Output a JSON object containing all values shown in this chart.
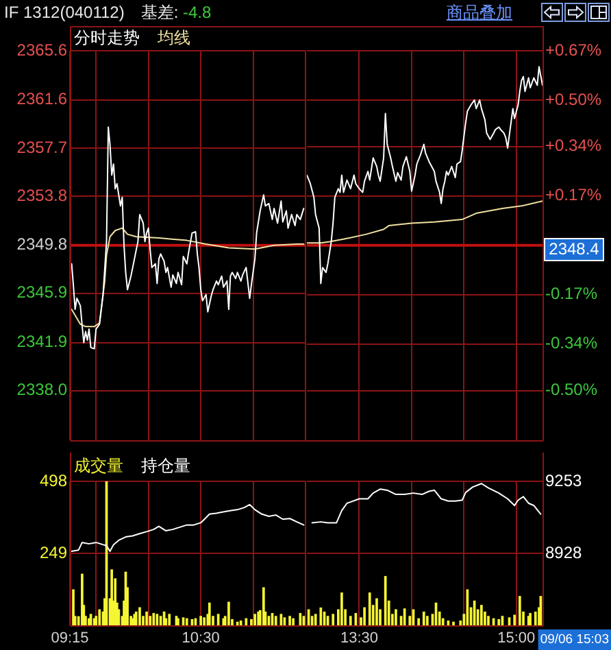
{
  "chart_data": [
    {
      "type": "line",
      "title": "IF 1312(040112)",
      "annotations": [
        "基差: -4.8"
      ],
      "series": [
        {
          "name": "分时走势",
          "color": "#ffffff",
          "x": [
            9.267,
            9.283,
            9.3,
            9.317,
            9.35,
            9.367,
            9.383,
            9.4,
            9.417,
            9.433,
            9.45,
            9.483,
            9.5,
            9.517,
            9.533,
            9.567,
            9.6,
            9.617,
            9.633,
            9.65,
            9.667,
            9.683,
            9.7,
            9.733,
            9.75,
            9.767,
            9.783,
            9.8,
            9.833,
            9.85,
            9.883,
            9.9,
            9.917,
            9.95,
            9.967,
            9.983,
            10,
            10.017,
            10.033,
            10.067,
            10.083,
            10.1,
            10.117,
            10.15,
            10.167,
            10.183,
            10.217,
            10.233,
            10.267,
            10.283,
            10.317,
            10.333,
            10.367,
            10.383,
            10.417,
            10.45,
            10.467,
            10.483,
            10.5,
            10.517,
            10.55,
            10.567,
            10.6,
            10.617,
            10.65,
            10.667,
            10.7,
            10.717,
            10.75,
            10.767,
            10.783,
            10.8,
            10.833,
            10.85,
            10.883,
            10.9,
            10.933,
            10.967,
            10.983,
            11.017,
            11.033,
            11.067,
            11.1,
            11.117,
            11.15,
            11.183,
            11.2,
            11.233,
            11.267,
            11.283,
            11.317,
            11.333,
            11.367,
            11.4,
            11.417,
            11.45,
            11.483
          ],
          "values": [
            2348.3,
            2346.6,
            2344.6,
            2345.5,
            2344.9,
            2343.3,
            2341.9,
            2342.8,
            2342.1,
            2343.0,
            2341.5,
            2341.4,
            2343.0,
            2343.2,
            2343.4,
            2345.8,
            2350.1,
            2359.4,
            2358.0,
            2355.5,
            2356.4,
            2354.4,
            2354.8,
            2353.0,
            2353.7,
            2349.8,
            2347.6,
            2346.2,
            2347.3,
            2348.0,
            2349.4,
            2350.1,
            2352.3,
            2351.6,
            2350.1,
            2350.8,
            2351.2,
            2349.4,
            2348.0,
            2348.3,
            2346.7,
            2348.7,
            2349.1,
            2348.5,
            2347.6,
            2348.0,
            2346.4,
            2347.4,
            2346.7,
            2347.6,
            2346.6,
            2348.9,
            2348.3,
            2349.2,
            2350.8,
            2350.9,
            2349.1,
            2348.0,
            2346.2,
            2345.3,
            2345.8,
            2344.4,
            2345.7,
            2346.2,
            2346.9,
            2346.6,
            2347.3,
            2346.4,
            2346.9,
            2344.6,
            2347.3,
            2347.6,
            2347.1,
            2347.6,
            2346.9,
            2347.4,
            2348.0,
            2345.5,
            2346.6,
            2348.7,
            2350.8,
            2352.6,
            2353.9,
            2353.0,
            2353.2,
            2351.9,
            2352.8,
            2351.6,
            2353.4,
            2351.7,
            2352.6,
            2351.2,
            2352.3,
            2351.4,
            2352.3,
            2351.9,
            2352.8
          ]
        },
        {
          "name": "均线",
          "color": "#f0e0a0",
          "x": [
            9.267,
            9.35,
            9.4,
            9.483,
            9.533,
            9.583,
            9.6,
            9.633,
            9.683,
            9.75,
            9.8,
            9.883,
            10.1,
            10.367,
            10.55,
            10.767,
            11.017,
            11.2,
            11.417,
            11.483
          ],
          "values": [
            2344.6,
            2343.4,
            2343.2,
            2343.2,
            2343.5,
            2346.9,
            2349.0,
            2350.5,
            2351.0,
            2351.2,
            2350.7,
            2350.5,
            2350.4,
            2350.2,
            2349.9,
            2349.6,
            2349.5,
            2349.8,
            2349.9,
            2349.9
          ]
        }
      ],
      "xlim": [
        9.25,
        11.5
      ],
      "xticks": [
        {
          "value": 9.25,
          "label": null
        },
        {
          "value": 9.5,
          "label": null
        },
        {
          "value": 10,
          "label": null
        },
        {
          "value": 10.5,
          "label": null
        },
        {
          "value": 11,
          "label": null
        },
        {
          "value": 11.5,
          "label": null
        }
      ],
      "ylim": [
        2334.0,
        2365.6
      ],
      "yticks": [
        2365.6,
        2361.6,
        2357.7,
        2353.8,
        2349.8,
        2345.9,
        2341.9,
        {
          "value": 2338.0,
          "label": "2338.0"
        }
      ],
      "ref_lines": [
        {
          "axis": "y",
          "value": 2349.8,
          "color": "#c01010"
        }
      ],
      "grid": true,
      "legend": "top left",
      "tick_labels": "y",
      "marker": "none",
      "line_style": "solid"
    },
    {
      "type": "line",
      "annotations": [
        "商品叠加",
        "2348.4"
      ],
      "series": [
        {
          "color": "#ffffff",
          "x": [
            13,
            13.033,
            13.067,
            13.083,
            13.117,
            13.133,
            13.15,
            13.183,
            13.2,
            13.233,
            13.25,
            13.267,
            13.3,
            13.317,
            13.333,
            13.35,
            13.383,
            13.417,
            13.45,
            13.467,
            13.5,
            13.533,
            13.55,
            13.583,
            13.6,
            13.633,
            13.667,
            13.683,
            13.7,
            13.733,
            13.75,
            13.767,
            13.8,
            13.817,
            13.85,
            13.867,
            13.9,
            13.917,
            13.95,
            13.983,
            14,
            14.033,
            14.05,
            14.083,
            14.117,
            14.133,
            14.167,
            14.217,
            14.233,
            14.267,
            14.283,
            14.3,
            14.317,
            14.333,
            14.35,
            14.383,
            14.417,
            14.433,
            14.467,
            14.483,
            14.517,
            14.533,
            14.567,
            14.6,
            14.617,
            14.65,
            14.667,
            14.7,
            14.717,
            14.75,
            14.783,
            14.8,
            14.833,
            14.85,
            14.883,
            14.9,
            14.917,
            14.95,
            14.967,
            14.983,
            15.017,
            15.033,
            15.05,
            15.067,
            15.083,
            15.117,
            15.133,
            15.167,
            15.2,
            15.217,
            15.25
          ],
          "values": [
            2355.5,
            2354.8,
            2353.7,
            2352.3,
            2351.2,
            2346.7,
            2348.0,
            2347.6,
            2348.3,
            2350.1,
            2351.6,
            2353.7,
            2354.4,
            2354.1,
            2355.5,
            2354.1,
            2355.1,
            2354.4,
            2355.5,
            2354.8,
            2354.4,
            2354.1,
            2355.0,
            2355.8,
            2355.1,
            2356.9,
            2356.2,
            2355.5,
            2355.0,
            2356.9,
            2360.5,
            2358.0,
            2356.9,
            2356.2,
            2355.0,
            2355.7,
            2355.1,
            2356.2,
            2357.0,
            2355.8,
            2354.2,
            2355.5,
            2356.4,
            2357.1,
            2358.0,
            2357.3,
            2356.6,
            2355.8,
            2355.0,
            2354.1,
            2353.2,
            2354.4,
            2355.0,
            2355.8,
            2355.5,
            2356.2,
            2355.3,
            2356.4,
            2356.6,
            2357.5,
            2359.8,
            2360.7,
            2361.2,
            2361.6,
            2360.9,
            2361.6,
            2360.9,
            2360.0,
            2358.9,
            2358.4,
            2358.9,
            2359.2,
            2359.4,
            2359.2,
            2358.9,
            2358.5,
            2357.7,
            2359.8,
            2360.9,
            2360.1,
            2361.2,
            2362.3,
            2363.2,
            2363.5,
            2362.3,
            2363.4,
            2362.6,
            2363.4,
            2362.8,
            2364.3,
            2362.8
          ]
        },
        {
          "color": "#f0e0a0",
          "x": [
            13,
            13.133,
            13.217,
            13.35,
            13.567,
            13.733,
            13.783,
            14,
            14.217,
            14.483,
            14.617,
            14.867,
            15.05,
            15.25
          ],
          "values": [
            2350.0,
            2350.0,
            2350.1,
            2350.3,
            2350.7,
            2351.1,
            2351.4,
            2351.6,
            2351.7,
            2351.9,
            2352.4,
            2352.8,
            2353.0,
            2353.4
          ]
        }
      ],
      "xlim": [
        13.0,
        15.25
      ],
      "xticks": [
        {
          "value": 13.5,
          "label": null
        },
        {
          "value": 14,
          "label": null
        },
        {
          "value": 14.5,
          "label": null
        },
        {
          "value": 15,
          "label": null
        }
      ],
      "ylim": [
        2334.0,
        2365.6
      ],
      "y2lim": [
        -0.67,
        0.67
      ],
      "y2ticks": [
        {
          "value": 0.67,
          "label": "+0.67%"
        },
        {
          "value": 0.5,
          "label": "+0.50%"
        },
        {
          "value": 0.34,
          "label": "+0.34%"
        },
        {
          "value": 0.17,
          "label": "+0.17%"
        },
        {
          "value": -0.17,
          "label": "-0.17%"
        },
        {
          "value": -0.34,
          "label": "-0.34%"
        },
        {
          "value": -0.5,
          "label": "-0.50%"
        }
      ],
      "ref_lines": [
        {
          "axis": "y",
          "value": 2349.8,
          "color": "#c01010"
        }
      ],
      "grid": true,
      "tick_labels": "y",
      "marker": "none",
      "line_style": "solid"
    },
    {
      "type": "bar",
      "series": [
        {
          "name": "成交量",
          "color": "#f5f532",
          "x": [
            9.283,
            9.3,
            9.333,
            9.367,
            9.383,
            9.4,
            9.433,
            9.45,
            9.483,
            9.5,
            9.533,
            9.567,
            9.583,
            9.6,
            9.633,
            9.65,
            9.667,
            9.683,
            9.7,
            9.717,
            9.75,
            9.767,
            9.783,
            9.8,
            9.833,
            9.85,
            9.867,
            9.883,
            9.917,
            9.95,
            9.983,
            10.017,
            10.05,
            10.083,
            10.117,
            10.15,
            10.167,
            10.2,
            10.267,
            10.283,
            10.333,
            10.367,
            10.417,
            10.45,
            10.5,
            10.533,
            10.567,
            10.583,
            10.617,
            10.667,
            10.717,
            10.733,
            10.767,
            10.8,
            10.85,
            10.883,
            10.933,
            10.983,
            11.017,
            11.05,
            11.067,
            11.1,
            11.117,
            11.15,
            11.183,
            11.217,
            11.267,
            11.3,
            11.35,
            11.383,
            11.45,
            11.483
          ],
          "values": [
            123,
            31,
            30,
            177,
            69,
            31,
            23,
            38,
            23,
            31,
            54,
            46,
            92,
            498,
            92,
            192,
            84,
            161,
            77,
            54,
            31,
            84,
            184,
            130,
            31,
            23,
            38,
            46,
            61,
            31,
            46,
            31,
            41,
            38,
            31,
            46,
            23,
            38,
            31,
            23,
            26,
            23,
            20,
            23,
            31,
            26,
            38,
            77,
            31,
            38,
            23,
            31,
            80,
            20,
            11,
            15,
            23,
            20,
            38,
            46,
            51,
            130,
            46,
            31,
            41,
            31,
            38,
            26,
            31,
            23,
            41,
            31
          ]
        },
        {
          "name": "持仓量",
          "type": "line",
          "axis": "y2",
          "color": "#ffffff",
          "x": [
            9.267,
            9.333,
            9.367,
            9.433,
            9.5,
            9.567,
            9.6,
            9.633,
            9.667,
            9.717,
            9.783,
            9.85,
            9.917,
            9.983,
            10.05,
            10.1,
            10.167,
            10.233,
            10.3,
            10.367,
            10.433,
            10.5,
            10.55,
            10.583,
            10.65,
            10.717,
            10.783,
            10.85,
            10.917,
            10.967,
            11.017,
            11.083,
            11.15,
            11.217,
            11.283,
            11.35,
            11.417,
            11.483
          ],
          "values": [
            8937,
            8943,
            8977,
            8971,
            8977,
            8967,
            8963,
            8937,
            8967,
            8987,
            9002,
            9007,
            9017,
            9026,
            9036,
            9050,
            9030,
            9036,
            9046,
            9056,
            9056,
            9066,
            9089,
            9105,
            9109,
            9115,
            9121,
            9125,
            9135,
            9148,
            9125,
            9105,
            9095,
            9101,
            9082,
            9085,
            9070,
            9056
          ]
        }
      ],
      "xlim": [
        9.25,
        11.5
      ],
      "xticks": [
        {
          "value": 9.25,
          "label": "09:15"
        },
        {
          "value": 9.5,
          "label": null
        },
        {
          "value": 10,
          "label": null
        },
        {
          "value": 10.5,
          "label": "10:30"
        },
        {
          "value": 11,
          "label": null
        },
        {
          "value": 11.5,
          "label": null
        }
      ],
      "ylim": [
        0,
        498
      ],
      "yticks": [
        249,
        498
      ],
      "y2lim": [
        8603,
        9253
      ],
      "grid": true,
      "legend": "top left",
      "marker": "none",
      "line_style": "solid"
    },
    {
      "type": "bar",
      "annotations": [
        "09/06 15:03"
      ],
      "series": [
        {
          "color": "#f5f532",
          "x": [
            13.017,
            13.05,
            13.083,
            13.133,
            13.167,
            13.2,
            13.25,
            13.3,
            13.333,
            13.367,
            13.417,
            13.467,
            13.517,
            13.55,
            13.6,
            13.633,
            13.667,
            13.7,
            13.75,
            13.783,
            13.817,
            13.85,
            13.9,
            13.933,
            13.983,
            14.017,
            14.067,
            14.117,
            14.15,
            14.2,
            14.233,
            14.267,
            14.3,
            14.35,
            14.4,
            14.467,
            14.5,
            14.533,
            14.567,
            14.6,
            14.633,
            14.667,
            14.7,
            14.733,
            14.783,
            14.833,
            14.867,
            14.933,
            14.983,
            15.033,
            15.067,
            15.117,
            15.133,
            15.183,
            15.217,
            15.233
          ],
          "values": [
            54,
            31,
            38,
            60,
            46,
            31,
            38,
            54,
            112,
            54,
            31,
            41,
            26,
            61,
            112,
            69,
            92,
            54,
            169,
            84,
            38,
            54,
            31,
            57,
            31,
            54,
            23,
            46,
            31,
            38,
            77,
            46,
            23,
            15,
            11,
            15,
            38,
            123,
            61,
            84,
            54,
            69,
            46,
            31,
            23,
            20,
            31,
            26,
            35,
            100,
            46,
            31,
            41,
            46,
            61,
            100
          ]
        },
        {
          "type": "line",
          "axis": "y2",
          "color": "#ffffff",
          "x": [
            13.05,
            13.133,
            13.2,
            13.283,
            13.333,
            13.383,
            13.5,
            13.583,
            13.633,
            13.7,
            13.767,
            13.85,
            13.933,
            14.017,
            14.1,
            14.167,
            14.217,
            14.283,
            14.35,
            14.417,
            14.483,
            14.517,
            14.583,
            14.667,
            14.733,
            14.833,
            14.917,
            14.983,
            15.017,
            15.067,
            15.117,
            15.167,
            15.233
          ],
          "values": [
            9066,
            9070,
            9066,
            9066,
            9121,
            9154,
            9174,
            9174,
            9200,
            9218,
            9213,
            9194,
            9194,
            9200,
            9194,
            9208,
            9213,
            9174,
            9164,
            9164,
            9168,
            9203,
            9227,
            9243,
            9223,
            9200,
            9174,
            9144,
            9168,
            9184,
            9154,
            9144,
            9105
          ]
        }
      ],
      "xlim": [
        13.0,
        15.25
      ],
      "xticks": [
        {
          "value": 13.5,
          "label": "13:30"
        },
        {
          "value": 14,
          "label": null
        },
        {
          "value": 14.5,
          "label": null
        },
        {
          "value": 15,
          "label": "15:00"
        }
      ],
      "ylim": [
        0,
        498
      ],
      "y2lim": [
        8603,
        9253
      ],
      "y2ticks": [
        8928,
        9253
      ],
      "grid": true,
      "marker": "none",
      "line_style": "solid"
    }
  ]
}
